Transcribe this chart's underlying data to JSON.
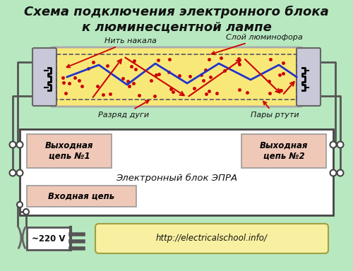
{
  "title": "Схема подключения электронного блока\nк люминесцентной лампе",
  "bg_color": "#b8e8c0",
  "tube_fill": "#f8e878",
  "tube_border": "#888888",
  "box_fill": "#ffffff",
  "box_border": "#555555",
  "pink_fill": "#f0c8b8",
  "yellow_fill": "#f8f0a0",
  "label1": "Нить накала",
  "label2": "Слой люминофора",
  "label3": "Разряд дуги",
  "label4": "Пары ртути",
  "label5": "Выходная\nцепь №1",
  "label6": "Выходная\nцепь №2",
  "label7": "Электронный блок ЭПРА",
  "label8": "Входная цепь",
  "label9": "~220 V",
  "label10": "http://electricalschool.info/"
}
